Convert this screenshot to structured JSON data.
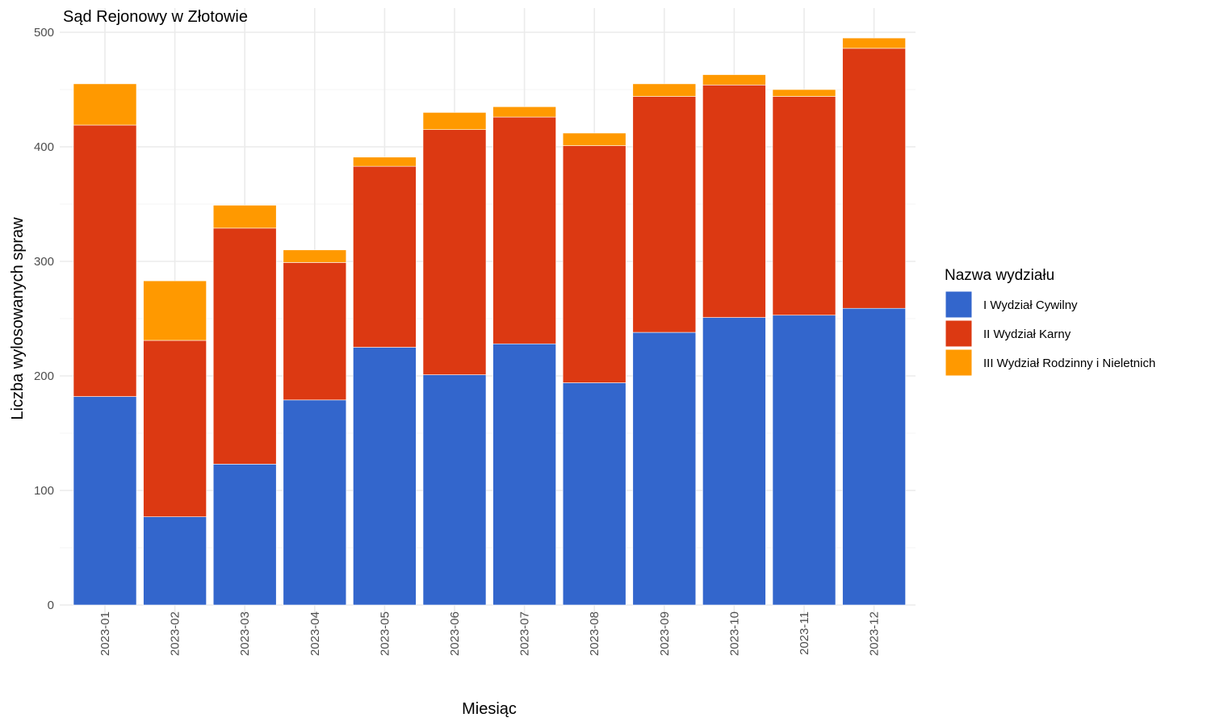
{
  "chart_data": {
    "type": "bar",
    "stacked": true,
    "title": "Sąd Rejonowy w Złotowie",
    "xlabel": "Miesiąc",
    "ylabel": "Liczba wylosowanych spraw",
    "ylim": [
      0,
      500
    ],
    "yticks": [
      "0",
      "100",
      "200",
      "300",
      "400",
      "500"
    ],
    "grid": true,
    "legend_title": "Nazwa wydziału",
    "legend_position": "right",
    "categories": [
      "2023-01",
      "2023-02",
      "2023-03",
      "2023-04",
      "2023-05",
      "2023-06",
      "2023-07",
      "2023-08",
      "2023-09",
      "2023-10",
      "2023-11",
      "2023-12"
    ],
    "series": [
      {
        "name": "I Wydział Cywilny",
        "color": "#3366cc",
        "values": [
          182,
          77,
          123,
          179,
          225,
          201,
          228,
          194,
          238,
          251,
          253,
          259
        ]
      },
      {
        "name": "II Wydział Karny",
        "color": "#dc3912",
        "values": [
          237,
          154,
          206,
          120,
          158,
          214,
          198,
          207,
          206,
          203,
          191,
          227
        ]
      },
      {
        "name": "III Wydział Rodzinny i Nieletnich",
        "color": "#ff9900",
        "values": [
          36,
          52,
          20,
          11,
          8,
          15,
          9,
          11,
          11,
          9,
          6,
          9
        ]
      }
    ]
  }
}
